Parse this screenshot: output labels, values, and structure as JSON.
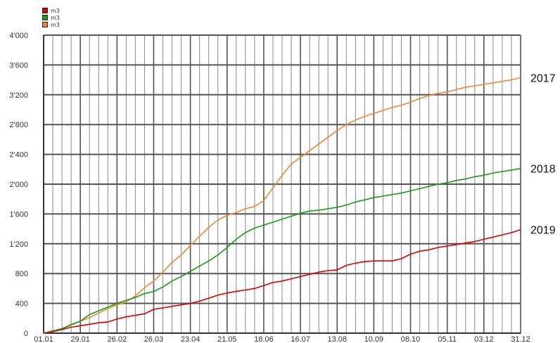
{
  "chart_data": {
    "type": "line",
    "title": "",
    "xlabel": "",
    "ylabel": "",
    "ylim": [
      0,
      4000
    ],
    "yticks": [
      0,
      400,
      800,
      1200,
      1600,
      2000,
      2400,
      2800,
      3200,
      3600,
      4000
    ],
    "ytick_labels": [
      "0",
      "400",
      "800",
      "1'200",
      "1'600",
      "2'000",
      "2'400",
      "2'800",
      "3'200",
      "3'600",
      "4'000"
    ],
    "xlim": [
      1,
      365
    ],
    "xtick_labels": [
      "01.01",
      "29.01",
      "26.02",
      "26.03",
      "23.04",
      "21.05",
      "18.06",
      "16.07",
      "13.08",
      "10.09",
      "08.10",
      "05.11",
      "03.12",
      "31.12"
    ],
    "xtick_days": [
      1,
      29,
      57,
      85,
      113,
      141,
      169,
      197,
      225,
      253,
      281,
      309,
      337,
      365
    ],
    "grid": true,
    "legend": [
      "m3",
      "m3",
      "m3"
    ],
    "legend_colors": [
      "#dd0000",
      "#1a9a1a",
      "#f0883a"
    ],
    "series": [
      {
        "name": "2017",
        "color": "#f0883a",
        "points": [
          [
            1,
            0
          ],
          [
            8,
            20
          ],
          [
            15,
            60
          ],
          [
            22,
            120
          ],
          [
            29,
            160
          ],
          [
            36,
            210
          ],
          [
            43,
            270
          ],
          [
            50,
            330
          ],
          [
            57,
            380
          ],
          [
            64,
            420
          ],
          [
            71,
            500
          ],
          [
            78,
            610
          ],
          [
            85,
            700
          ],
          [
            92,
            820
          ],
          [
            99,
            950
          ],
          [
            106,
            1050
          ],
          [
            113,
            1180
          ],
          [
            120,
            1300
          ],
          [
            127,
            1420
          ],
          [
            134,
            1520
          ],
          [
            141,
            1580
          ],
          [
            148,
            1620
          ],
          [
            155,
            1670
          ],
          [
            162,
            1700
          ],
          [
            169,
            1780
          ],
          [
            176,
            1950
          ],
          [
            183,
            2120
          ],
          [
            190,
            2270
          ],
          [
            197,
            2360
          ],
          [
            204,
            2450
          ],
          [
            211,
            2540
          ],
          [
            218,
            2630
          ],
          [
            225,
            2720
          ],
          [
            232,
            2800
          ],
          [
            239,
            2860
          ],
          [
            246,
            2910
          ],
          [
            253,
            2950
          ],
          [
            260,
            2990
          ],
          [
            267,
            3030
          ],
          [
            274,
            3060
          ],
          [
            281,
            3100
          ],
          [
            288,
            3150
          ],
          [
            295,
            3190
          ],
          [
            302,
            3220
          ],
          [
            309,
            3240
          ],
          [
            316,
            3270
          ],
          [
            323,
            3300
          ],
          [
            330,
            3320
          ],
          [
            337,
            3340
          ],
          [
            344,
            3360
          ],
          [
            351,
            3380
          ],
          [
            358,
            3400
          ],
          [
            365,
            3430
          ]
        ]
      },
      {
        "name": "2018",
        "color": "#1a9a1a",
        "points": [
          [
            1,
            0
          ],
          [
            8,
            30
          ],
          [
            15,
            60
          ],
          [
            22,
            110
          ],
          [
            29,
            160
          ],
          [
            36,
            250
          ],
          [
            43,
            300
          ],
          [
            50,
            350
          ],
          [
            57,
            400
          ],
          [
            64,
            440
          ],
          [
            71,
            480
          ],
          [
            78,
            530
          ],
          [
            85,
            560
          ],
          [
            92,
            620
          ],
          [
            99,
            700
          ],
          [
            106,
            760
          ],
          [
            113,
            830
          ],
          [
            120,
            900
          ],
          [
            127,
            970
          ],
          [
            134,
            1050
          ],
          [
            141,
            1150
          ],
          [
            148,
            1260
          ],
          [
            155,
            1350
          ],
          [
            162,
            1410
          ],
          [
            169,
            1450
          ],
          [
            176,
            1490
          ],
          [
            183,
            1530
          ],
          [
            190,
            1570
          ],
          [
            197,
            1610
          ],
          [
            204,
            1640
          ],
          [
            211,
            1650
          ],
          [
            218,
            1670
          ],
          [
            225,
            1690
          ],
          [
            232,
            1720
          ],
          [
            239,
            1760
          ],
          [
            246,
            1790
          ],
          [
            253,
            1820
          ],
          [
            260,
            1840
          ],
          [
            267,
            1860
          ],
          [
            274,
            1880
          ],
          [
            281,
            1910
          ],
          [
            288,
            1940
          ],
          [
            295,
            1970
          ],
          [
            302,
            2000
          ],
          [
            309,
            2020
          ],
          [
            316,
            2050
          ],
          [
            323,
            2070
          ],
          [
            330,
            2100
          ],
          [
            337,
            2120
          ],
          [
            344,
            2150
          ],
          [
            351,
            2170
          ],
          [
            358,
            2190
          ],
          [
            365,
            2210
          ]
        ]
      },
      {
        "name": "2019",
        "color": "#dd0000",
        "points": [
          [
            1,
            0
          ],
          [
            8,
            20
          ],
          [
            15,
            50
          ],
          [
            22,
            80
          ],
          [
            29,
            100
          ],
          [
            36,
            120
          ],
          [
            43,
            140
          ],
          [
            50,
            150
          ],
          [
            57,
            190
          ],
          [
            64,
            220
          ],
          [
            71,
            240
          ],
          [
            78,
            260
          ],
          [
            85,
            320
          ],
          [
            92,
            340
          ],
          [
            99,
            360
          ],
          [
            106,
            380
          ],
          [
            113,
            400
          ],
          [
            120,
            430
          ],
          [
            127,
            470
          ],
          [
            134,
            510
          ],
          [
            141,
            540
          ],
          [
            148,
            560
          ],
          [
            155,
            580
          ],
          [
            162,
            600
          ],
          [
            169,
            640
          ],
          [
            176,
            680
          ],
          [
            183,
            700
          ],
          [
            190,
            730
          ],
          [
            197,
            760
          ],
          [
            204,
            790
          ],
          [
            211,
            820
          ],
          [
            218,
            840
          ],
          [
            225,
            850
          ],
          [
            232,
            910
          ],
          [
            239,
            940
          ],
          [
            246,
            960
          ],
          [
            253,
            970
          ],
          [
            260,
            970
          ],
          [
            267,
            970
          ],
          [
            274,
            1000
          ],
          [
            281,
            1060
          ],
          [
            288,
            1100
          ],
          [
            295,
            1120
          ],
          [
            302,
            1150
          ],
          [
            309,
            1170
          ],
          [
            316,
            1190
          ],
          [
            323,
            1210
          ],
          [
            330,
            1230
          ],
          [
            337,
            1260
          ],
          [
            344,
            1290
          ],
          [
            351,
            1320
          ],
          [
            358,
            1350
          ],
          [
            365,
            1390
          ]
        ]
      }
    ]
  }
}
